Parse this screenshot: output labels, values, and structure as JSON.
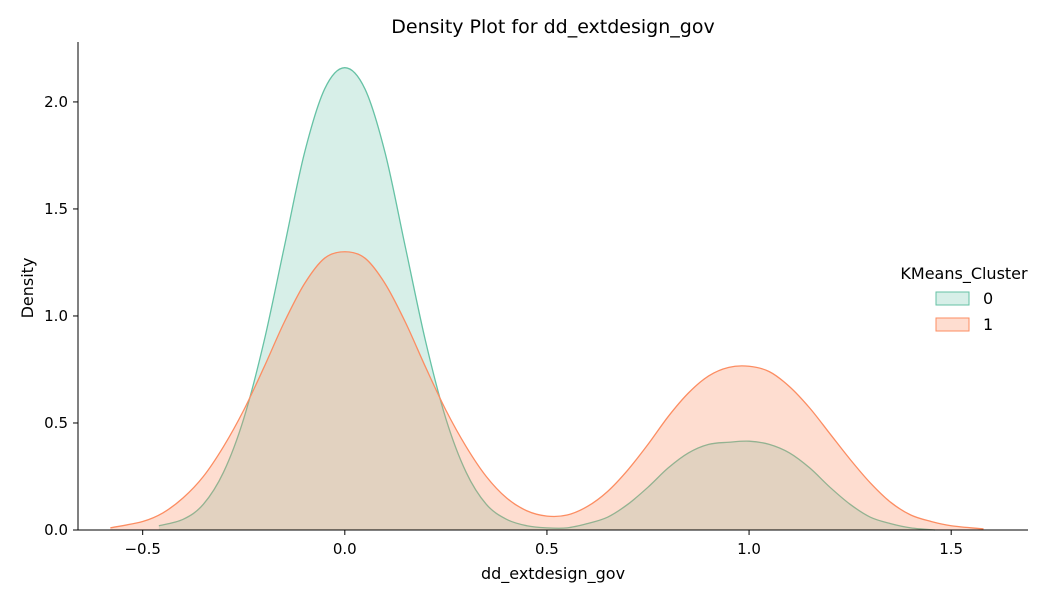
{
  "chart_data": {
    "type": "area",
    "title": "Density Plot for dd_extdesign_gov",
    "xlabel": "dd_extdesign_gov",
    "ylabel": "Density",
    "xlim": [
      -0.66,
      1.69
    ],
    "ylim": [
      0,
      2.28
    ],
    "xticks": [
      -0.5,
      0.0,
      0.5,
      1.0,
      1.5
    ],
    "xtick_labels": [
      "−0.5",
      "0.0",
      "0.5",
      "1.0",
      "1.5"
    ],
    "yticks": [
      0.0,
      0.5,
      1.0,
      1.5,
      2.0
    ],
    "ytick_labels": [
      "0.0",
      "0.5",
      "1.0",
      "1.5",
      "2.0"
    ],
    "grid": false,
    "legend": {
      "title": "KMeans_Cluster",
      "position": "right"
    },
    "series": [
      {
        "name": "0",
        "color": "#66c2a5",
        "fill": "rgba(102,194,165,0.26)",
        "x": [
          -0.46,
          -0.4,
          -0.35,
          -0.3,
          -0.25,
          -0.2,
          -0.15,
          -0.1,
          -0.05,
          0.0,
          0.05,
          0.1,
          0.15,
          0.2,
          0.25,
          0.3,
          0.35,
          0.4,
          0.45,
          0.5,
          0.55,
          0.6,
          0.65,
          0.7,
          0.75,
          0.8,
          0.85,
          0.9,
          0.95,
          1.0,
          1.05,
          1.1,
          1.15,
          1.2,
          1.25,
          1.3,
          1.35,
          1.4,
          1.46
        ],
        "y": [
          0.02,
          0.05,
          0.12,
          0.27,
          0.52,
          0.88,
          1.32,
          1.76,
          2.06,
          2.16,
          2.06,
          1.76,
          1.32,
          0.88,
          0.52,
          0.27,
          0.12,
          0.05,
          0.02,
          0.01,
          0.01,
          0.03,
          0.06,
          0.12,
          0.2,
          0.29,
          0.36,
          0.4,
          0.41,
          0.415,
          0.4,
          0.36,
          0.29,
          0.2,
          0.12,
          0.06,
          0.03,
          0.01,
          0.0
        ]
      },
      {
        "name": "1",
        "color": "#fc8d62",
        "fill": "rgba(252,141,98,0.3)",
        "x": [
          -0.58,
          -0.5,
          -0.45,
          -0.4,
          -0.35,
          -0.3,
          -0.25,
          -0.2,
          -0.15,
          -0.1,
          -0.05,
          0.0,
          0.05,
          0.1,
          0.15,
          0.2,
          0.25,
          0.3,
          0.35,
          0.4,
          0.45,
          0.5,
          0.55,
          0.6,
          0.65,
          0.7,
          0.75,
          0.8,
          0.85,
          0.9,
          0.95,
          1.0,
          1.05,
          1.1,
          1.15,
          1.2,
          1.25,
          1.3,
          1.35,
          1.4,
          1.45,
          1.5,
          1.58
        ],
        "y": [
          0.01,
          0.04,
          0.08,
          0.15,
          0.25,
          0.39,
          0.56,
          0.76,
          0.97,
          1.15,
          1.27,
          1.3,
          1.27,
          1.15,
          0.97,
          0.76,
          0.56,
          0.39,
          0.25,
          0.15,
          0.09,
          0.065,
          0.07,
          0.11,
          0.18,
          0.28,
          0.4,
          0.53,
          0.64,
          0.72,
          0.76,
          0.765,
          0.74,
          0.67,
          0.57,
          0.45,
          0.33,
          0.22,
          0.13,
          0.07,
          0.04,
          0.02,
          0.005
        ]
      }
    ]
  }
}
